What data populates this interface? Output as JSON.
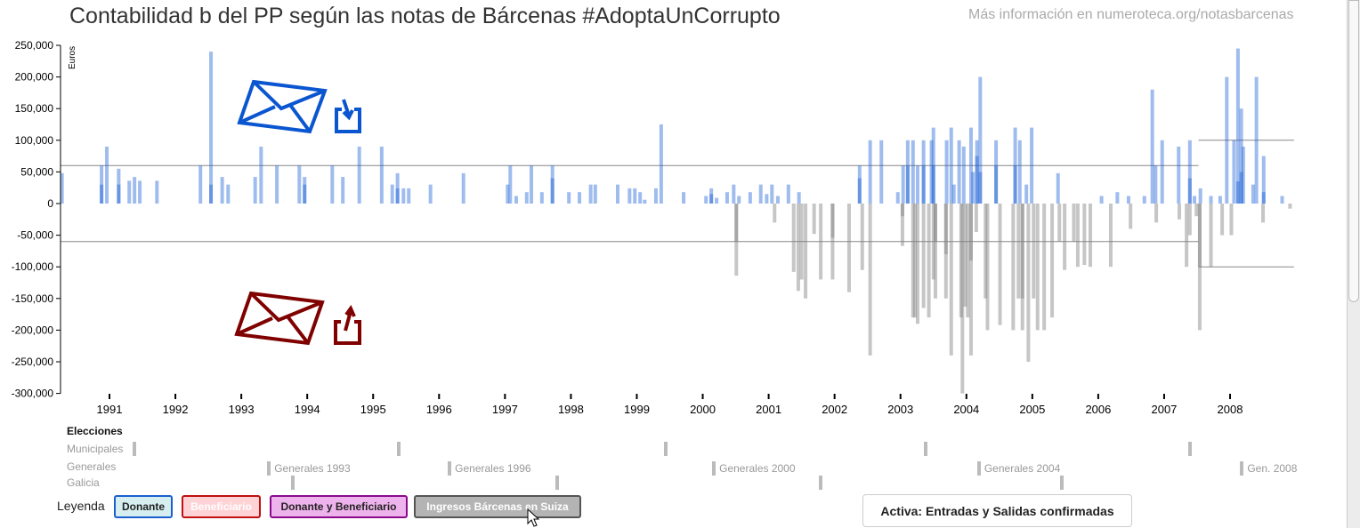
{
  "header": {
    "title": "Contabilidad b del PP según las notas de Bárcenas #AdoptaUnCorrupto",
    "more_info": "Más información en numeroteca.org/notasbarcenas"
  },
  "colors": {
    "entrada": "#1a5fd7",
    "salida": "#808080",
    "in_icon": "#0a55d0",
    "out_icon": "#800000"
  },
  "icons": {
    "entradas": "envelope-in-icon",
    "salidas": "envelope-out-icon"
  },
  "chart_data": {
    "type": "bar",
    "title": "Contabilidad b del PP según las notas de Bárcenas #AdoptaUnCorrupto",
    "ylabel": "Euros",
    "xlabel": "",
    "ylim": [
      -300000,
      250000
    ],
    "xlim": [
      1990.25,
      2008.97
    ],
    "yticks": [
      -300000,
      -250000,
      -200000,
      -150000,
      -100000,
      -50000,
      0,
      50000,
      100000,
      150000,
      200000,
      250000
    ],
    "ytick_labels": [
      "-300,000",
      "-250,000",
      "-200,000",
      "-150,000",
      "-100,000",
      "-50,000",
      "0",
      "50,000",
      "100,000",
      "150,000",
      "200,000",
      "250,000"
    ],
    "xticks": [
      1991,
      1992,
      1993,
      1994,
      1995,
      1996,
      1997,
      1998,
      1999,
      2000,
      2001,
      2002,
      2003,
      2004,
      2005,
      2006,
      2007,
      2008
    ],
    "xtick_labels": [
      "1991",
      "1992",
      "1993",
      "1994",
      "1995",
      "1996",
      "1997",
      "1998",
      "1999",
      "2000",
      "2001",
      "2002",
      "2003",
      "2004",
      "2005",
      "2006",
      "2007",
      "2008"
    ],
    "reference_lines": [
      {
        "value": 60000,
        "from": 1990.25,
        "to": 2007.52
      },
      {
        "value": -60000,
        "from": 1990.25,
        "to": 2007.52
      },
      {
        "value": 100000,
        "from": 2007.52,
        "to": 2008.97
      },
      {
        "value": -100000,
        "from": 2007.52,
        "to": 2008.97
      }
    ],
    "series": [
      {
        "name": "Entradas",
        "points": [
          [
            1990.28,
            48000
          ],
          [
            1990.88,
            60000
          ],
          [
            1990.88,
            30000
          ],
          [
            1990.96,
            90000
          ],
          [
            1991.14,
            55000
          ],
          [
            1991.14,
            30000
          ],
          [
            1991.3,
            36000
          ],
          [
            1991.38,
            42000
          ],
          [
            1991.46,
            36000
          ],
          [
            1991.72,
            36000
          ],
          [
            1992.38,
            60000
          ],
          [
            1992.54,
            240000
          ],
          [
            1992.54,
            30000
          ],
          [
            1992.71,
            42000
          ],
          [
            1992.8,
            30000
          ],
          [
            1993.21,
            42000
          ],
          [
            1993.3,
            90000
          ],
          [
            1993.54,
            60000
          ],
          [
            1993.88,
            60000
          ],
          [
            1993.96,
            42000
          ],
          [
            1993.96,
            30000
          ],
          [
            1994.38,
            60000
          ],
          [
            1994.54,
            42000
          ],
          [
            1994.79,
            90000
          ],
          [
            1995.13,
            90000
          ],
          [
            1995.29,
            30000
          ],
          [
            1995.37,
            48000
          ],
          [
            1995.37,
            24000
          ],
          [
            1995.46,
            24000
          ],
          [
            1995.54,
            24000
          ],
          [
            1995.87,
            30000
          ],
          [
            1996.37,
            48000
          ],
          [
            1997.04,
            30000
          ],
          [
            1997.08,
            60000
          ],
          [
            1997.17,
            12000
          ],
          [
            1997.33,
            18000
          ],
          [
            1997.4,
            60000
          ],
          [
            1997.56,
            18000
          ],
          [
            1997.72,
            60000
          ],
          [
            1997.72,
            40000
          ],
          [
            1997.97,
            18000
          ],
          [
            1998.13,
            18000
          ],
          [
            1998.3,
            30000
          ],
          [
            1998.37,
            30000
          ],
          [
            1998.71,
            30000
          ],
          [
            1998.89,
            24000
          ],
          [
            1998.97,
            24000
          ],
          [
            1999.05,
            18000
          ],
          [
            1999.12,
            6000
          ],
          [
            1999.29,
            24000
          ],
          [
            1999.37,
            125000
          ],
          [
            1999.71,
            18000
          ],
          [
            2000.05,
            12000
          ],
          [
            2000.13,
            24000
          ],
          [
            2000.13,
            15000
          ],
          [
            2000.21,
            9000
          ],
          [
            2000.37,
            18000
          ],
          [
            2000.47,
            30000
          ],
          [
            2000.55,
            12000
          ],
          [
            2000.72,
            18000
          ],
          [
            2000.88,
            30000
          ],
          [
            2000.97,
            15000
          ],
          [
            2001.05,
            30000
          ],
          [
            2001.14,
            12000
          ],
          [
            2001.3,
            30000
          ],
          [
            2001.46,
            18000
          ],
          [
            2002.38,
            60000
          ],
          [
            2002.38,
            40000
          ],
          [
            2002.54,
            100000
          ],
          [
            2002.71,
            100000
          ],
          [
            2002.96,
            18000
          ],
          [
            2003.04,
            60000
          ],
          [
            2003.11,
            100000
          ],
          [
            2003.11,
            60000
          ],
          [
            2003.19,
            100000
          ],
          [
            2003.26,
            60000
          ],
          [
            2003.35,
            100000
          ],
          [
            2003.35,
            60000
          ],
          [
            2003.47,
            100000
          ],
          [
            2003.5,
            120000
          ],
          [
            2003.5,
            60000
          ],
          [
            2003.7,
            100000
          ],
          [
            2003.77,
            120000
          ],
          [
            2003.81,
            30000
          ],
          [
            2003.89,
            100000
          ],
          [
            2003.96,
            90000
          ],
          [
            2004.07,
            120000
          ],
          [
            2004.1,
            50000
          ],
          [
            2004.16,
            100000
          ],
          [
            2004.16,
            75000
          ],
          [
            2004.21,
            200000
          ],
          [
            2004.21,
            50000
          ],
          [
            2004.45,
            100000
          ],
          [
            2004.45,
            60000
          ],
          [
            2004.74,
            120000
          ],
          [
            2004.74,
            60000
          ],
          [
            2004.81,
            100000
          ],
          [
            2004.91,
            30000
          ],
          [
            2004.99,
            120000
          ],
          [
            2005.39,
            48000
          ],
          [
            2006.05,
            12000
          ],
          [
            2006.29,
            18000
          ],
          [
            2006.46,
            12000
          ],
          [
            2006.7,
            12000
          ],
          [
            2006.82,
            180000
          ],
          [
            2006.87,
            60000
          ],
          [
            2006.97,
            100000
          ],
          [
            2007.22,
            90000
          ],
          [
            2007.39,
            100000
          ],
          [
            2007.39,
            40000
          ],
          [
            2007.46,
            12000
          ],
          [
            2007.55,
            24000
          ],
          [
            2007.71,
            12000
          ],
          [
            2007.85,
            12000
          ],
          [
            2007.95,
            200000
          ],
          [
            2008.06,
            100000
          ],
          [
            2008.12,
            245000
          ],
          [
            2008.12,
            35000
          ],
          [
            2008.17,
            150000
          ],
          [
            2008.17,
            50000
          ],
          [
            2008.2,
            90000
          ],
          [
            2008.35,
            30000
          ],
          [
            2008.4,
            200000
          ],
          [
            2008.51,
            75000
          ],
          [
            2008.51,
            18000
          ],
          [
            2008.79,
            12000
          ]
        ]
      },
      {
        "name": "Salidas",
        "points": [
          [
            2000.51,
            -114000
          ],
          [
            2000.51,
            -60000
          ],
          [
            2001.09,
            -30000
          ],
          [
            2001.38,
            -108000
          ],
          [
            2001.45,
            -138000
          ],
          [
            2001.5,
            -120000
          ],
          [
            2001.56,
            -150000
          ],
          [
            2001.69,
            -48000
          ],
          [
            2001.79,
            -120000
          ],
          [
            2001.97,
            -120000
          ],
          [
            2001.97,
            -54000
          ],
          [
            2002.22,
            -140000
          ],
          [
            2002.42,
            -105000
          ],
          [
            2002.54,
            -240000
          ],
          [
            2003.03,
            -67000
          ],
          [
            2003.03,
            -20000
          ],
          [
            2003.19,
            -180000
          ],
          [
            2003.22,
            -180000
          ],
          [
            2003.26,
            -190000
          ],
          [
            2003.35,
            -165000
          ],
          [
            2003.43,
            -180000
          ],
          [
            2003.5,
            -120000
          ],
          [
            2003.53,
            -150000
          ],
          [
            2003.53,
            -60000
          ],
          [
            2003.69,
            -150000
          ],
          [
            2003.69,
            -80000
          ],
          [
            2003.77,
            -240000
          ],
          [
            2003.92,
            -180000
          ],
          [
            2003.94,
            -300000
          ],
          [
            2003.98,
            -163000
          ],
          [
            2004.02,
            -180000
          ],
          [
            2004.07,
            -240000
          ],
          [
            2004.07,
            -90000
          ],
          [
            2004.15,
            -45000
          ],
          [
            2004.29,
            -150000
          ],
          [
            2004.32,
            -200000
          ],
          [
            2004.51,
            -192000
          ],
          [
            2004.71,
            -200000
          ],
          [
            2004.79,
            -150000
          ],
          [
            2004.85,
            -200000
          ],
          [
            2004.85,
            -150000
          ],
          [
            2004.94,
            -250000
          ],
          [
            2005.02,
            -150000
          ],
          [
            2005.08,
            -200000
          ],
          [
            2005.18,
            -200000
          ],
          [
            2005.3,
            -180000
          ],
          [
            2005.41,
            -60000
          ],
          [
            2005.49,
            -105000
          ],
          [
            2005.63,
            -60000
          ],
          [
            2005.69,
            -100000
          ],
          [
            2005.79,
            -97000
          ],
          [
            2005.88,
            -100000
          ],
          [
            2006.19,
            -100000
          ],
          [
            2006.49,
            -40000
          ],
          [
            2006.88,
            -30000
          ],
          [
            2007.23,
            -25000
          ],
          [
            2007.34,
            -100000
          ],
          [
            2007.39,
            -50000
          ],
          [
            2007.49,
            -20000
          ],
          [
            2007.54,
            -200000
          ],
          [
            2007.54,
            -100000
          ],
          [
            2007.71,
            -100000
          ],
          [
            2007.88,
            -50000
          ],
          [
            2008.02,
            -50000
          ],
          [
            2008.5,
            -30000
          ],
          [
            2008.91,
            -8000
          ]
        ]
      }
    ]
  },
  "elecciones": {
    "heading": "Elecciones",
    "rows": [
      {
        "name": "Municipales",
        "events": [
          {
            "year": 1991.38,
            "label": ""
          },
          {
            "year": 1995.39,
            "label": ""
          },
          {
            "year": 1999.44,
            "label": ""
          },
          {
            "year": 2003.38,
            "label": ""
          },
          {
            "year": 2007.39,
            "label": ""
          }
        ]
      },
      {
        "name": "Generales",
        "events": [
          {
            "year": 1993.42,
            "label": "Generales 1993"
          },
          {
            "year": 1996.16,
            "label": "Generales 1996"
          },
          {
            "year": 2000.17,
            "label": "Generales 2000"
          },
          {
            "year": 2004.19,
            "label": "Generales 2004"
          },
          {
            "year": 2008.18,
            "label": "Gen. 2008"
          }
        ]
      },
      {
        "name": "Galicia",
        "events": [
          {
            "year": 1993.78,
            "label": ""
          },
          {
            "year": 1997.79,
            "label": ""
          },
          {
            "year": 2001.79,
            "label": ""
          },
          {
            "year": 2005.45,
            "label": ""
          }
        ]
      }
    ]
  },
  "legend": {
    "label": "Leyenda",
    "items": [
      {
        "label": "Donante",
        "bg": "#d6eef0",
        "border": "#1a5fd0",
        "text": "#222"
      },
      {
        "label": "Beneficiario",
        "bg": "#ffd2d6",
        "border": "#c01010",
        "text": "#fff"
      },
      {
        "label": "Donante y Beneficiario",
        "bg": "#eeb2ec",
        "border": "#8a0a8a",
        "text": "#222"
      },
      {
        "label": "Ingresos Bárcenas en Suiza",
        "bg": "#b4b4b4",
        "border": "#555555",
        "text": "#fff"
      }
    ]
  },
  "active_filter": "Activa: Entradas y Salidas confirmadas"
}
